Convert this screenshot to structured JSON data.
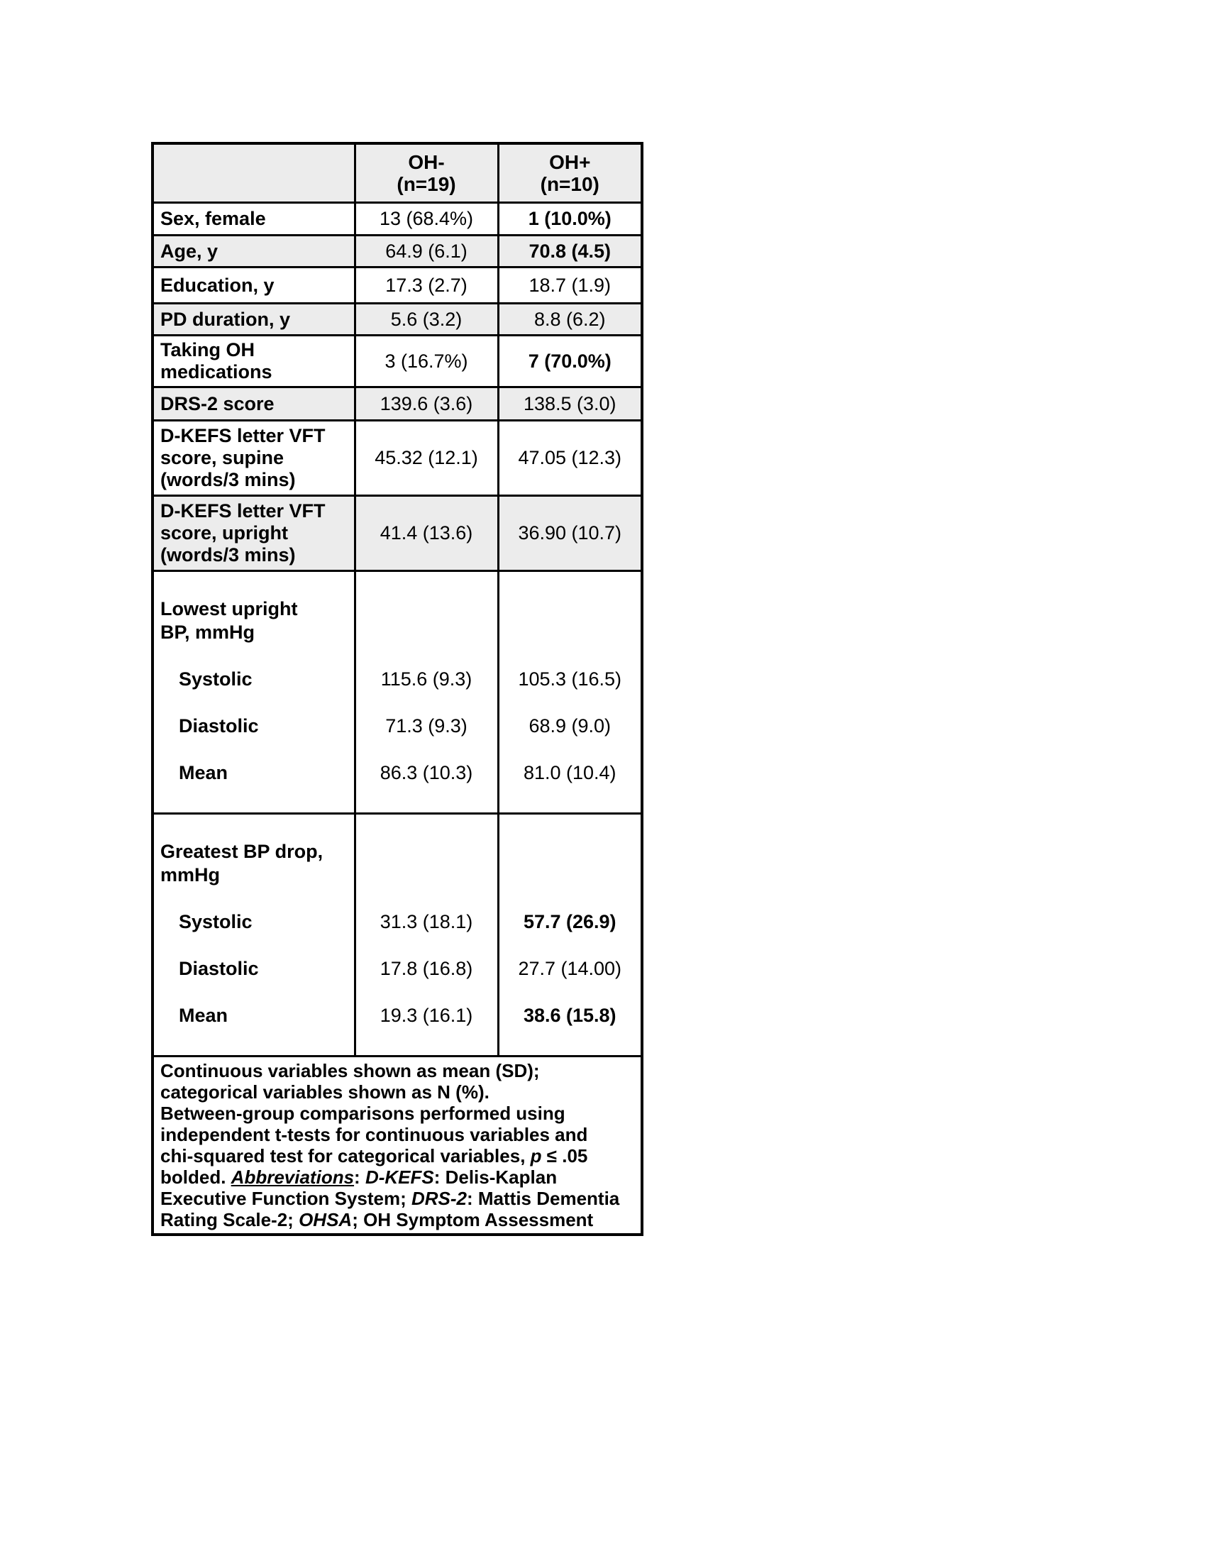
{
  "table": {
    "header": {
      "col0": "",
      "col1": "OH-\n(n=19)",
      "col2": "OH+\n(n=10)"
    },
    "rows": [
      {
        "label": "Sex, female",
        "oh_minus": "13 (68.4%)",
        "oh_plus": "1 (10.0%)"
      },
      {
        "label": "Age, y",
        "oh_minus": "64.9 (6.1)",
        "oh_plus": "70.8 (4.5)"
      },
      {
        "label": "Education, y",
        "oh_minus": "17.3 (2.7)",
        "oh_plus": "18.7 (1.9)"
      },
      {
        "label": "PD duration, y",
        "oh_minus": "5.6 (3.2)",
        "oh_plus": "8.8 (6.2)"
      },
      {
        "label": "Taking OH\nmedications",
        "oh_minus": "3 (16.7%)",
        "oh_plus": "7 (70.0%)"
      },
      {
        "label": "DRS-2 score",
        "oh_minus": "139.6 (3.6)",
        "oh_plus": "138.5 (3.0)"
      },
      {
        "label": "D-KEFS letter VFT\nscore, supine\n(words/3 mins)",
        "oh_minus": "45.32 (12.1)",
        "oh_plus": "47.05 (12.3)"
      },
      {
        "label": "D-KEFS letter VFT\nscore, upright\n(words/3 mins)",
        "oh_minus": "41.4 (13.6)",
        "oh_plus": "36.90 (10.7)"
      }
    ],
    "bp_sections": [
      {
        "label": "Lowest upright\nBP, mmHg",
        "sub": [
          "Systolic",
          "Diastolic",
          "Mean"
        ],
        "oh_minus": [
          "115.6 (9.3)",
          "71.3 (9.3)",
          "86.3 (10.3)"
        ],
        "oh_plus": [
          "105.3 (16.5)",
          "68.9 (9.0)",
          "81.0 (10.4)"
        ]
      },
      {
        "label": "Greatest BP drop,\nmmHg",
        "sub": [
          "Systolic",
          "Diastolic",
          "Mean"
        ],
        "oh_minus": [
          "31.3 (18.1)",
          "17.8 (16.8)",
          "19.3 (16.1)"
        ],
        "oh_plus": [
          "57.7 (26.9)",
          "27.7 (14.00)",
          "38.6 (15.8)"
        ]
      }
    ],
    "footnote": {
      "p1": "Continuous variables shown as mean (SD);\ncategorical variables shown as N (%).\nBetween-group comparisons performed using\nindependent t-tests for continuous variables and\nchi-squared test for categorical variables, ",
      "p2": "p",
      "p3": " ≤ .05\nbolded. ",
      "p4": "Abbreviations",
      "p5": ": ",
      "p6": "D-KEFS",
      "p7": ": Delis-Kaplan\nExecutive Function System; ",
      "p8": "DRS-2",
      "p9": ": Mattis Dementia\nRating Scale-2; ",
      "p10": "OHSA",
      "p11": "; OH Symptom Assessment"
    },
    "colors": {
      "row_shade": "#ececec",
      "border": "#000000",
      "text": "#000000"
    }
  }
}
